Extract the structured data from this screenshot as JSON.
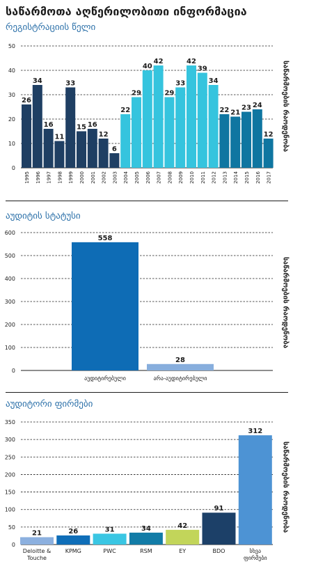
{
  "page": {
    "title": "საწარმოთა აღწერილობითი ინფორმაცია"
  },
  "chart_data": [
    {
      "type": "bar",
      "subtitle": "რეგისტრაციის წელი",
      "ylabel": "საწარმოების რაოდენობა",
      "ylim": [
        0,
        50
      ],
      "yticks": [
        0,
        10,
        20,
        30,
        40,
        50
      ],
      "grid": true,
      "categories": [
        "1995",
        "1996",
        "1997",
        "1998",
        "1999",
        "2000",
        "2001",
        "2002",
        "2003",
        "2004",
        "2005",
        "2006",
        "2007",
        "2008",
        "2009",
        "2010",
        "2011",
        "2012",
        "2013",
        "2014",
        "2015",
        "2016",
        "2017"
      ],
      "values": [
        26,
        34,
        16,
        11,
        33,
        15,
        16,
        12,
        6,
        22,
        29,
        40,
        42,
        29,
        33,
        42,
        39,
        34,
        22,
        21,
        23,
        24,
        12
      ],
      "bar_colors": [
        "#1f3f63",
        "#1f3f63",
        "#1f3f63",
        "#1f3f63",
        "#1f3f63",
        "#1f3f63",
        "#1f3f63",
        "#1f3f63",
        "#1f3f63",
        "#35c4de",
        "#35c4de",
        "#35c4de",
        "#35c4de",
        "#35c4de",
        "#35c4de",
        "#35c4de",
        "#35c4de",
        "#35c4de",
        "#0f76a1",
        "#0f76a1",
        "#0f76a1",
        "#0f76a1",
        "#0f76a1"
      ]
    },
    {
      "type": "bar",
      "subtitle": "აუდიტის სტატუსი",
      "ylabel": "საწარმოების რაოდენობა",
      "ylim": [
        0,
        600
      ],
      "yticks": [
        0,
        100,
        200,
        300,
        400,
        500,
        600
      ],
      "grid": true,
      "categories": [
        "აუდიტირებული",
        "არა-აუდიტირებული"
      ],
      "values": [
        558,
        28
      ],
      "bar_colors": [
        "#0e6cb5",
        "#87aedd"
      ]
    },
    {
      "type": "bar",
      "subtitle": "აუდიტორი ფირმები",
      "ylabel": "საწარმოების რაოდენობა",
      "ylim": [
        0,
        350
      ],
      "yticks": [
        0,
        50,
        100,
        150,
        200,
        250,
        300,
        350
      ],
      "grid": true,
      "categories": [
        "Deloitte & Touche",
        "KPMG",
        "PWC",
        "RSM",
        "EY",
        "BDO",
        "სხვა ფირმები"
      ],
      "values": [
        21,
        26,
        31,
        34,
        42,
        91,
        312
      ],
      "bar_colors": [
        "#8cb0df",
        "#0f6eb8",
        "#3ac6e3",
        "#127ca7",
        "#c2d55a",
        "#1c4068",
        "#4d93d4"
      ]
    }
  ]
}
